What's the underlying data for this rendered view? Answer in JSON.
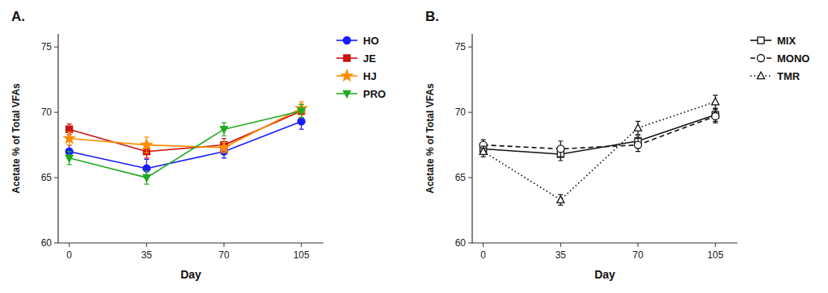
{
  "chart_data": [
    {
      "type": "line",
      "title": "A.",
      "xlabel": "Day",
      "ylabel": "Acetate % of Total VFAs",
      "x": [
        0,
        35,
        70,
        105
      ],
      "series": [
        {
          "name": "HO",
          "values": [
            67.0,
            65.7,
            67.0,
            69.3
          ],
          "errors": [
            0.5,
            0.7,
            0.5,
            0.6
          ],
          "color": "#1a1aff",
          "marker": "circle",
          "line_style": "solid"
        },
        {
          "name": "JE",
          "values": [
            68.7,
            67.0,
            67.5,
            70.1
          ],
          "errors": [
            0.4,
            0.5,
            0.5,
            0.5
          ],
          "color": "#cc1111",
          "marker": "square",
          "line_style": "solid"
        },
        {
          "name": "HJ",
          "values": [
            68.0,
            67.5,
            67.3,
            70.3
          ],
          "errors": [
            0.5,
            0.6,
            0.4,
            0.5
          ],
          "color": "#ff8c00",
          "marker": "star",
          "line_style": "solid"
        },
        {
          "name": "PRO",
          "values": [
            66.5,
            65.0,
            68.7,
            70.1
          ],
          "errors": [
            0.5,
            0.5,
            0.5,
            0.5
          ],
          "color": "#22aa22",
          "marker": "triangle-down",
          "line_style": "solid"
        }
      ],
      "xlim": [
        -5,
        115
      ],
      "xticks": [
        0,
        35,
        70,
        105
      ],
      "ylim": [
        60,
        76
      ],
      "yticks": [
        60,
        65,
        70,
        75
      ],
      "grid": false,
      "legend": "right"
    },
    {
      "type": "line",
      "title": "B.",
      "xlabel": "Day",
      "ylabel": "Acetate % of Total VFAs",
      "x": [
        0,
        35,
        70,
        105
      ],
      "series": [
        {
          "name": "MIX",
          "values": [
            67.2,
            66.8,
            67.8,
            69.8
          ],
          "errors": [
            0.4,
            0.5,
            0.4,
            0.5
          ],
          "color": "#111111",
          "marker": "square-open",
          "line_style": "solid"
        },
        {
          "name": "MONO",
          "values": [
            67.5,
            67.2,
            67.5,
            69.7
          ],
          "errors": [
            0.4,
            0.6,
            0.5,
            0.5
          ],
          "color": "#111111",
          "marker": "circle-open",
          "line_style": "dashed"
        },
        {
          "name": "TMR",
          "values": [
            67.0,
            63.3,
            68.8,
            70.8
          ],
          "errors": [
            0.4,
            0.4,
            0.5,
            0.5
          ],
          "color": "#111111",
          "marker": "triangle-up-open",
          "line_style": "dotted"
        }
      ],
      "xlim": [
        -5,
        115
      ],
      "xticks": [
        0,
        35,
        70,
        105
      ],
      "ylim": [
        60,
        76
      ],
      "yticks": [
        60,
        65,
        70,
        75
      ],
      "grid": false,
      "legend": "right"
    }
  ]
}
